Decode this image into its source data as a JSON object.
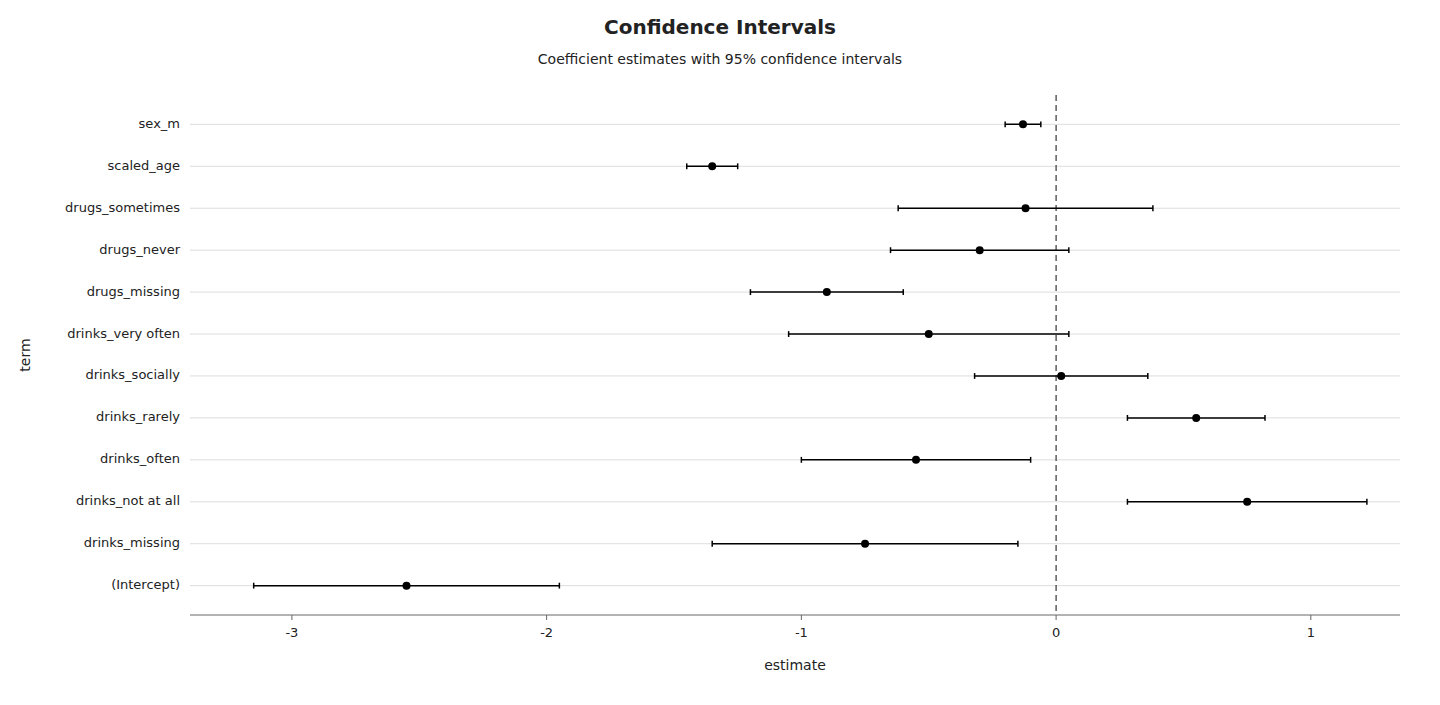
{
  "chart_data": {
    "type": "errorbar",
    "title": "Confidence Intervals",
    "subtitle": "Coefficient estimates with 95% confidence intervals",
    "xlabel": "estimate",
    "ylabel": "term",
    "orientation": "horizontal",
    "categories": [
      "(Intercept)",
      "drinks_missing",
      "drinks_not at all",
      "drinks_often",
      "drinks_rarely",
      "drinks_socially",
      "drinks_very often",
      "drugs_missing",
      "drugs_never",
      "drugs_sometimes",
      "scaled_age",
      "sex_m"
    ],
    "values": [
      -2.55,
      -0.75,
      0.75,
      -0.55,
      0.55,
      0.02,
      -0.5,
      -0.9,
      -0.3,
      -0.12,
      -1.35,
      -0.13
    ],
    "ci_low": [
      -3.15,
      -1.35,
      0.28,
      -1.0,
      0.28,
      -0.32,
      -1.05,
      -1.2,
      -0.65,
      -0.62,
      -1.45,
      -0.2
    ],
    "ci_high": [
      -1.95,
      -0.15,
      1.22,
      -0.1,
      0.82,
      0.36,
      0.05,
      -0.6,
      0.05,
      0.38,
      -1.25,
      -0.06
    ],
    "vline_x": 0,
    "xlim": [
      -3.4,
      1.35
    ],
    "xticks": [
      -3,
      -2,
      -1,
      0,
      1
    ],
    "grid": true,
    "color": "#000000"
  }
}
